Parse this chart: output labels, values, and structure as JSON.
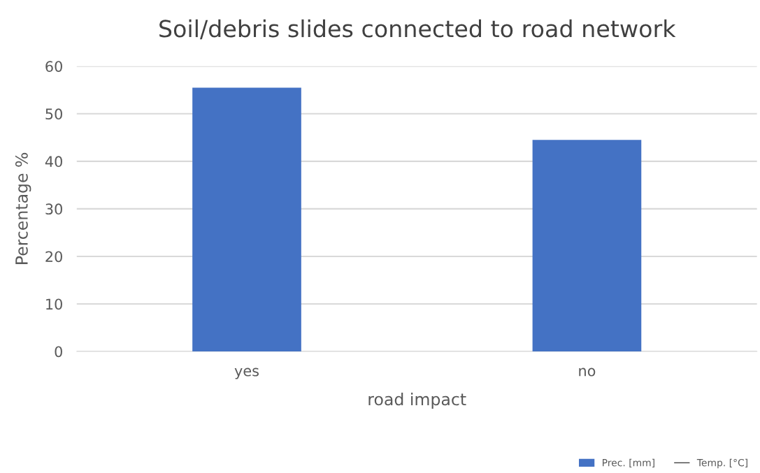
{
  "chart_data": {
    "type": "bar",
    "title": "Soil/debris slides connected to road network",
    "xlabel": "road impact",
    "ylabel": "Percentage %",
    "categories": [
      "yes",
      "no"
    ],
    "series": [
      {
        "name": "Prec. [mm]",
        "color": "#4472c4",
        "values": [
          55.5,
          44.5
        ]
      },
      {
        "name": "Temp. [°C]",
        "type": "line",
        "color": "#404040",
        "values": [
          null,
          null
        ]
      }
    ],
    "ylim": [
      0,
      60
    ],
    "yticks": [
      0,
      10,
      20,
      30,
      40,
      50,
      60
    ],
    "grid": "y",
    "legend": "bottom right"
  }
}
